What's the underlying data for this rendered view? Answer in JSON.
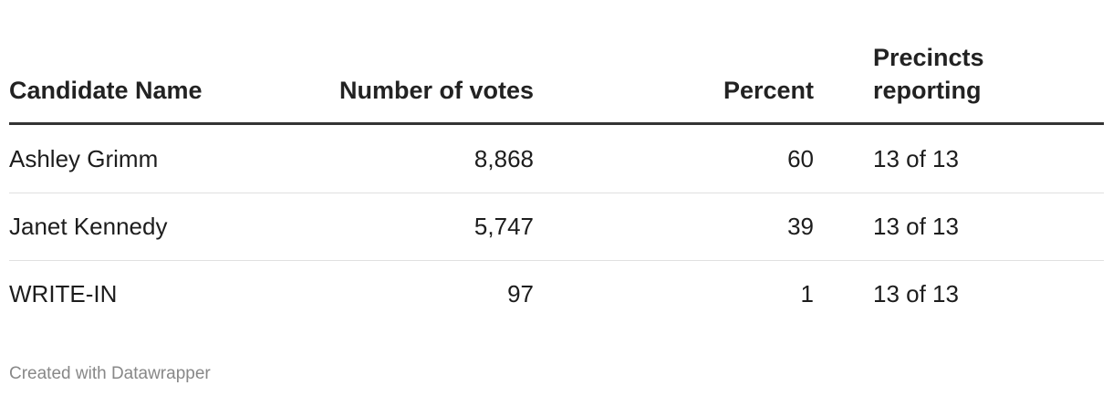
{
  "table": {
    "header": [
      "Candidate Name",
      "Number of votes",
      "Percent",
      "Precincts reporting"
    ],
    "rows": [
      [
        "Ashley Grimm",
        "8,868",
        "60",
        "13 of 13"
      ],
      [
        "Janet Kennedy",
        "5,747",
        "39",
        "13 of 13"
      ],
      [
        "WRITE-IN",
        "97",
        "1",
        "13 of 13"
      ]
    ]
  },
  "footer": "Created with Datawrapper"
}
